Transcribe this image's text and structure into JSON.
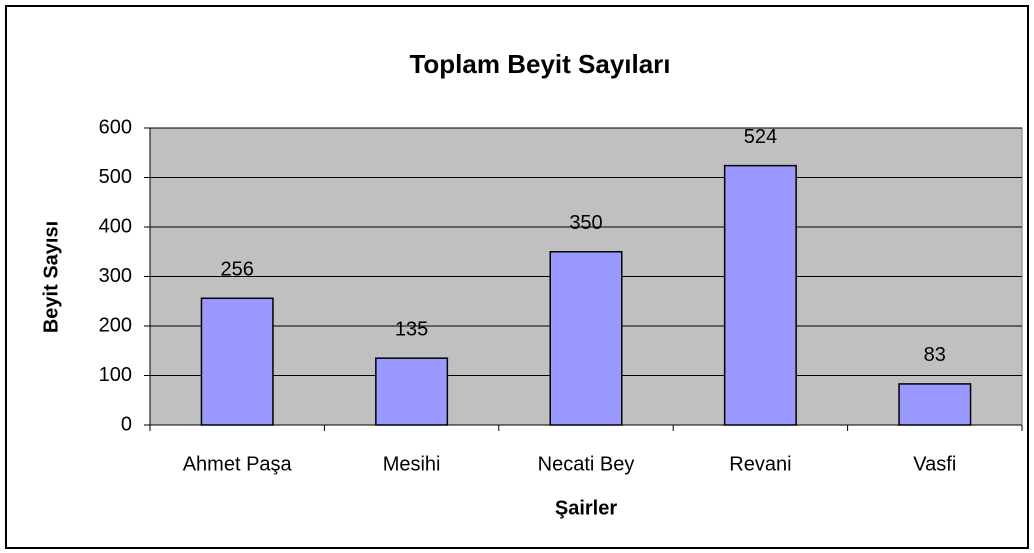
{
  "chart_data": {
    "type": "bar",
    "title": "Toplam Beyit Sayıları",
    "x_label": "Şairler",
    "y_label": "Beyit Sayısı",
    "categories": [
      "Ahmet Paşa",
      "Mesihi",
      "Necati Bey",
      "Revani",
      "Vasfi"
    ],
    "values": [
      256,
      135,
      350,
      524,
      83
    ],
    "color": "#9999ff",
    "plot_background": "#c0c0c0",
    "ylim": [
      0,
      600
    ],
    "yticks": [
      0,
      100,
      200,
      300,
      400,
      500,
      600
    ],
    "grid": true
  }
}
